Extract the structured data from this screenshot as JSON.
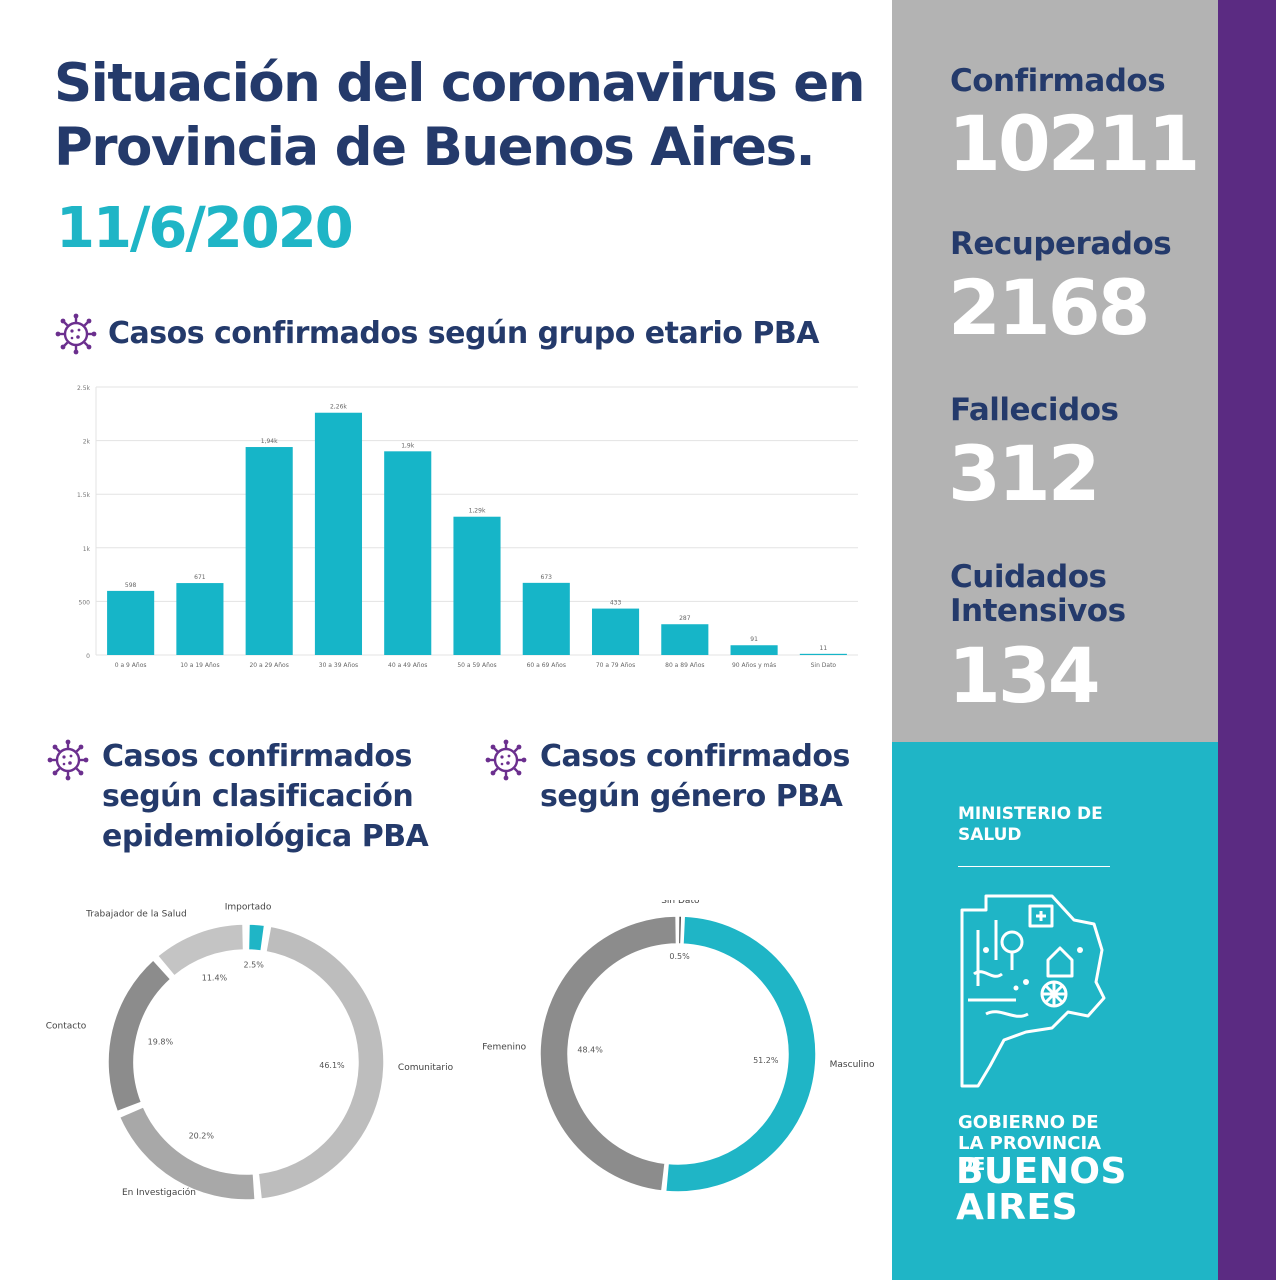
{
  "header": {
    "title": "Situación del coronavirus en Provincia de Buenos Aires.",
    "date": "11/6/2020"
  },
  "sections": {
    "age_title": "Casos confirmados según grupo etario PBA",
    "class_title": "Casos confirmados según clasificación epidemiológica PBA",
    "gender_title": "Casos confirmados según género PBA"
  },
  "stats": {
    "confirmed_label": "Confirmados",
    "confirmed_value": "10211",
    "recovered_label": "Recuperados",
    "recovered_value": "2168",
    "deaths_label": "Fallecidos",
    "deaths_value": "312",
    "icu_label": "Cuidados Intensivos",
    "icu_value": "134"
  },
  "brand": {
    "ministry": "MINISTERIO DE SALUD",
    "government": "GOBIERNO DE LA PROVINCIA DE",
    "province": "BUENOS AIRES"
  },
  "colors": {
    "navy": "#243a6b",
    "teal": "#1fb5c6",
    "bar": "#16b5c8",
    "grey_panel": "#b3b3b3",
    "purple": "#5b2b82"
  },
  "chart_data": [
    {
      "type": "bar",
      "categories": [
        "0 a 9 Años",
        "10 a 19 Años",
        "20 a 29 Años",
        "30 a 39 Años",
        "40 a 49 Años",
        "50 a 59 Años",
        "60 a 69 Años",
        "70 a 79 Años",
        "80 a 89 Años",
        "90 Años y más",
        "Sin Dato"
      ],
      "values": [
        598,
        671,
        1940,
        2260,
        1900,
        1290,
        673,
        433,
        287,
        91,
        11
      ],
      "value_labels": [
        "598",
        "671",
        "1,94k",
        "2,26k",
        "1,9k",
        "1,29k",
        "673",
        "433",
        "287",
        "91",
        "11"
      ],
      "yticks": [
        "0",
        "500",
        "1k",
        "1.5k",
        "2k",
        "2.5k"
      ],
      "ylim": [
        0,
        2500
      ],
      "grid": true
    },
    {
      "type": "pie",
      "labels": [
        "Importado",
        "Comunitario",
        "En Investigación",
        "Contacto",
        "Trabajador de la Salud"
      ],
      "values": [
        2.5,
        46.1,
        20.2,
        19.8,
        11.4
      ],
      "value_labels": [
        "2.5%",
        "46.1%",
        "20.2%",
        "19.8%",
        "11.4%"
      ],
      "colors": [
        "#1fb5c6",
        "#bdbdbd",
        "#a8a8a8",
        "#8c8c8c",
        "#c4c4c4"
      ]
    },
    {
      "type": "pie",
      "labels": [
        "Sin Dato",
        "Masculino",
        "Femenino"
      ],
      "values": [
        0.5,
        51.2,
        48.4
      ],
      "value_labels": [
        "0.5%",
        "51.2%",
        "48.4%"
      ],
      "colors": [
        "#222222",
        "#1fb5c6",
        "#8c8c8c"
      ]
    }
  ]
}
